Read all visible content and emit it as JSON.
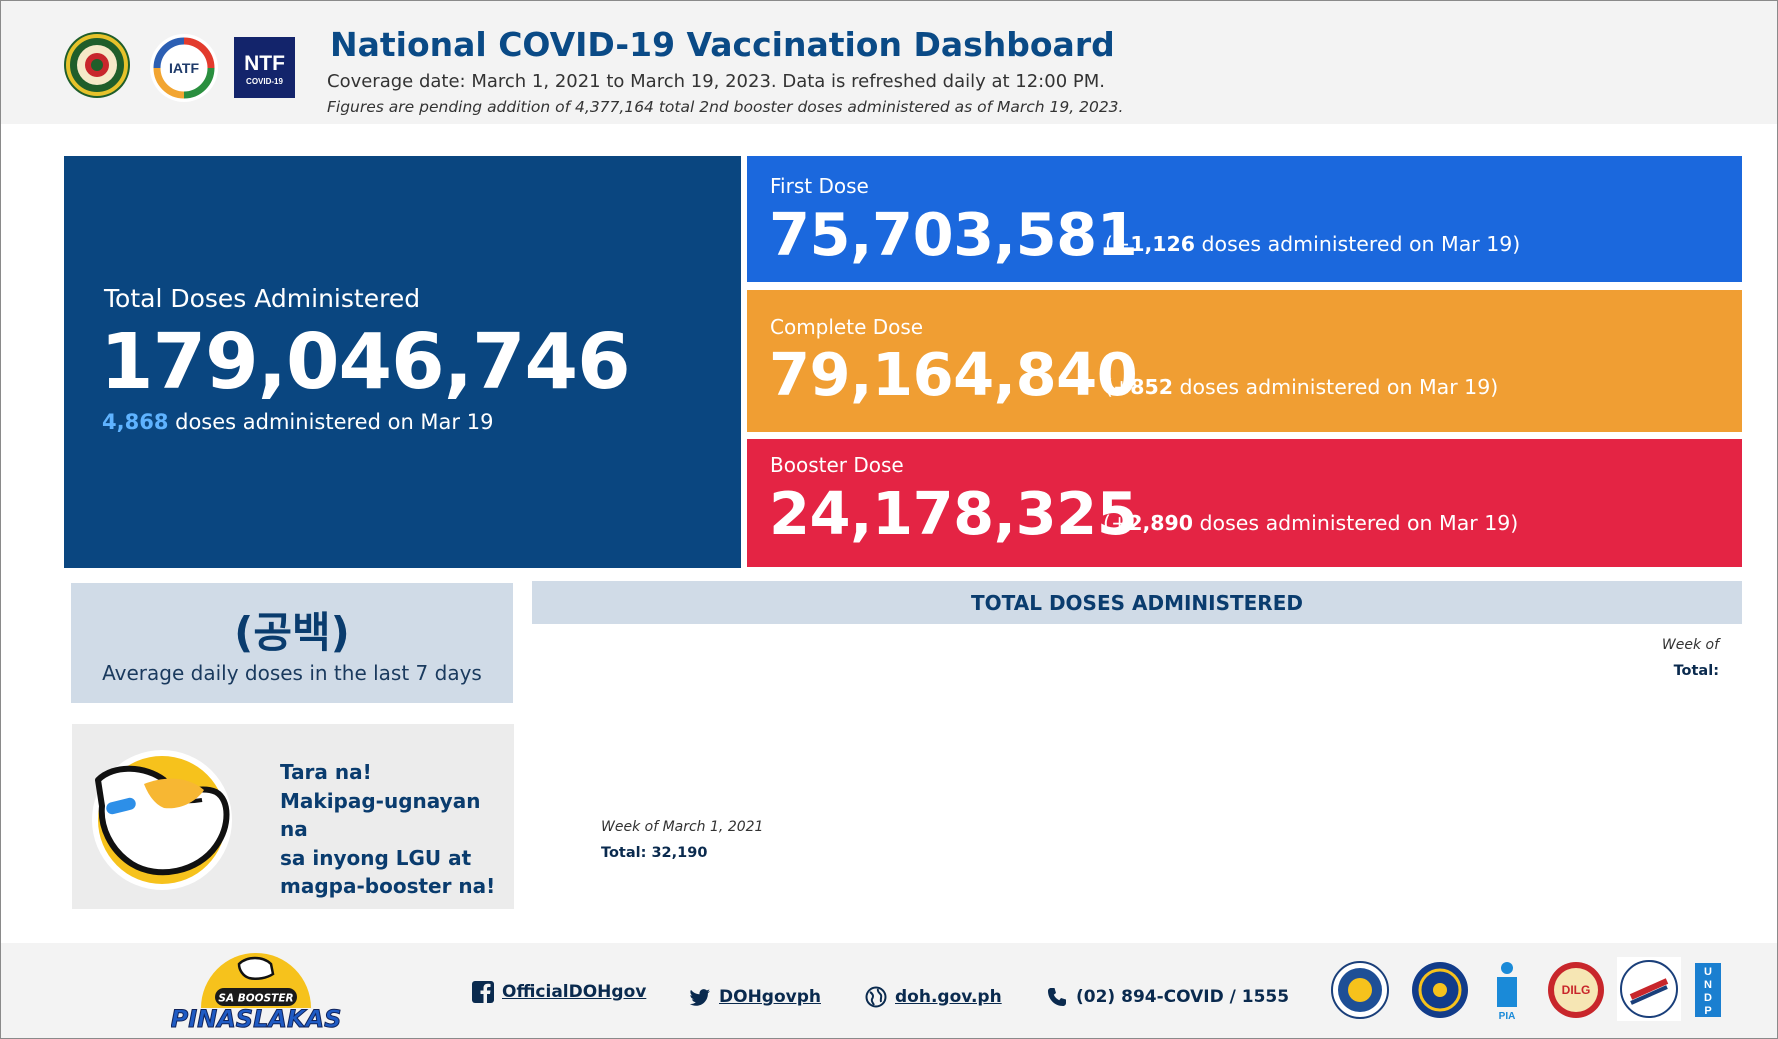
{
  "header": {
    "title": "National COVID-19 Vaccination Dashboard",
    "coverage": "Coverage date: March 1, 2021 to March 19, 2023. Data is refreshed daily at 12:00 PM.",
    "note": "Figures are pending addition of 4,377,164 total 2nd booster doses administered as of March 19, 2023.",
    "logos": [
      "doh-seal",
      "iatf-logo",
      "ntf-covid19-logo"
    ],
    "ntf_logo_text": "NTF",
    "ntf_logo_subtext": "COVID-19",
    "iatf_logo_text": "IATF"
  },
  "total": {
    "label": "Total Doses Administered",
    "value": "179,046,746",
    "daily_count": "4,868",
    "daily_suffix": " doses administered on Mar 19"
  },
  "doses": {
    "first": {
      "label": "First Dose",
      "value": "75,703,581",
      "prefix": "(+",
      "delta": "1,126",
      "suffix": " doses administered on Mar 19)",
      "color": "#1b68dd"
    },
    "complete": {
      "label": "Complete Dose",
      "value": "79,164,840",
      "prefix": "(+",
      "delta": "852",
      "suffix": " doses administered on Mar 19)",
      "color": "#f09e33"
    },
    "booster": {
      "label": "Booster Dose",
      "value": "24,178,325",
      "prefix": "(+",
      "delta": "2,890",
      "suffix": " doses administered on Mar 19)",
      "color": "#e42444"
    }
  },
  "average": {
    "value": "(공백)",
    "label": "Average daily doses in the last 7 days"
  },
  "promo": {
    "lines": [
      "Tara na!",
      "Makipag-ugnayan na",
      "sa inyong LGU at",
      "magpa-booster na!"
    ]
  },
  "chart": {
    "title": "TOTAL DOSES ADMINISTERED",
    "tooltip_right_week": "Week of",
    "tooltip_right_total": "Total:",
    "tooltip_left_week": "Week of March 1, 2021",
    "tooltip_left_total": "Total: 32,190"
  },
  "footer": {
    "campaign_top": "SA BOOSTER",
    "campaign_bottom": "PINASLAKAS",
    "facebook": "OfficialDOHgov",
    "twitter": "DOHgovph",
    "website": "doh.gov.ph",
    "phone": "(02) 894-COVID / 1555",
    "partner_logos": [
      "presidential-communications-seal",
      "pcoo-seal",
      "pia-logo",
      "dilg-seal",
      "dict-seal",
      "undp-logo"
    ],
    "pia_text": "PIA",
    "dilg_text": "DILG",
    "undp_text": [
      "U",
      "N",
      "D",
      "P"
    ]
  },
  "colors": {
    "navy": "#0a4680",
    "blue": "#1b68dd",
    "orange": "#f09e33",
    "red": "#e42444",
    "panel": "#d0dbe7"
  }
}
